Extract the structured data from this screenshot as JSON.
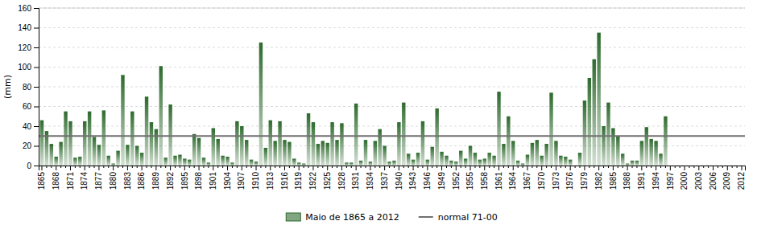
{
  "chart_data": {
    "type": "bar",
    "ylabel": "(mm)",
    "categories": [
      "1865",
      null,
      null,
      "1868",
      null,
      null,
      "1871",
      null,
      null,
      "1874",
      null,
      null,
      "1877",
      null,
      null,
      "1880",
      null,
      null,
      "1883",
      null,
      null,
      "1886",
      null,
      null,
      "1889",
      null,
      null,
      "1892",
      null,
      null,
      "1895",
      null,
      null,
      "1898",
      null,
      null,
      "1901",
      null,
      null,
      "1904",
      null,
      null,
      "1907",
      null,
      null,
      "1910",
      null,
      null,
      "1913",
      null,
      null,
      "1916",
      null,
      null,
      "1919",
      null,
      null,
      "1922",
      null,
      null,
      "1925",
      null,
      null,
      "1928",
      null,
      null,
      "1931",
      null,
      null,
      "1934",
      null,
      null,
      "1937",
      null,
      null,
      "1940",
      null,
      null,
      "1943",
      null,
      null,
      "1946",
      null,
      null,
      "1949",
      null,
      null,
      "1952",
      null,
      null,
      "1955",
      null,
      null,
      "1958",
      null,
      null,
      "1961",
      null,
      null,
      "1964",
      null,
      null,
      "1967",
      null,
      null,
      "1970",
      null,
      null,
      "1973",
      null,
      null,
      "1976",
      null,
      null,
      "1979",
      null,
      null,
      "1982",
      null,
      null,
      "1985",
      null,
      null,
      "1988",
      null,
      null,
      "1991",
      null,
      null,
      "1994",
      null,
      null,
      "1997",
      null,
      null,
      "2000",
      null,
      null,
      "2003",
      null,
      null,
      "2006",
      null,
      null,
      "2009",
      null,
      null,
      "2012"
    ],
    "series": [
      {
        "name": "Maio de 1865 a 2012",
        "type": "bar",
        "color": "#2d6a2d",
        "values": [
          46,
          35,
          22,
          9,
          24,
          55,
          45,
          8,
          9,
          45,
          55,
          29,
          21,
          56,
          10,
          2,
          15,
          92,
          21,
          55,
          20,
          13,
          70,
          44,
          37,
          101,
          8,
          62,
          10,
          11,
          7,
          6,
          32,
          28,
          8,
          3,
          38,
          27,
          10,
          9,
          3,
          45,
          40,
          26,
          6,
          4,
          125,
          18,
          46,
          25,
          45,
          26,
          24,
          7,
          3,
          2,
          53,
          44,
          22,
          25,
          23,
          44,
          26,
          43,
          3,
          3,
          63,
          5,
          26,
          4,
          25,
          37,
          20,
          4,
          5,
          44,
          64,
          12,
          6,
          13,
          45,
          6,
          19,
          58,
          14,
          10,
          5,
          4,
          15,
          7,
          20,
          13,
          6,
          7,
          13,
          10,
          75,
          22,
          50,
          25,
          5,
          2,
          11,
          23,
          26,
          10,
          22,
          74,
          25,
          10,
          9,
          6,
          0,
          13,
          66,
          89,
          108,
          135,
          40,
          64,
          38,
          30,
          12,
          2,
          5,
          5,
          25,
          39,
          27,
          25,
          12,
          50,
          null,
          null,
          null,
          null,
          null,
          null,
          null,
          null,
          null,
          null,
          null,
          null,
          null,
          null,
          null,
          null
        ]
      },
      {
        "name": "normal 71-00",
        "type": "hline",
        "color": "#707070",
        "value": 30
      }
    ],
    "ylim": [
      0,
      160
    ],
    "yticks": [
      0,
      20,
      40,
      60,
      80,
      100,
      120,
      140,
      160
    ],
    "grid": true
  }
}
